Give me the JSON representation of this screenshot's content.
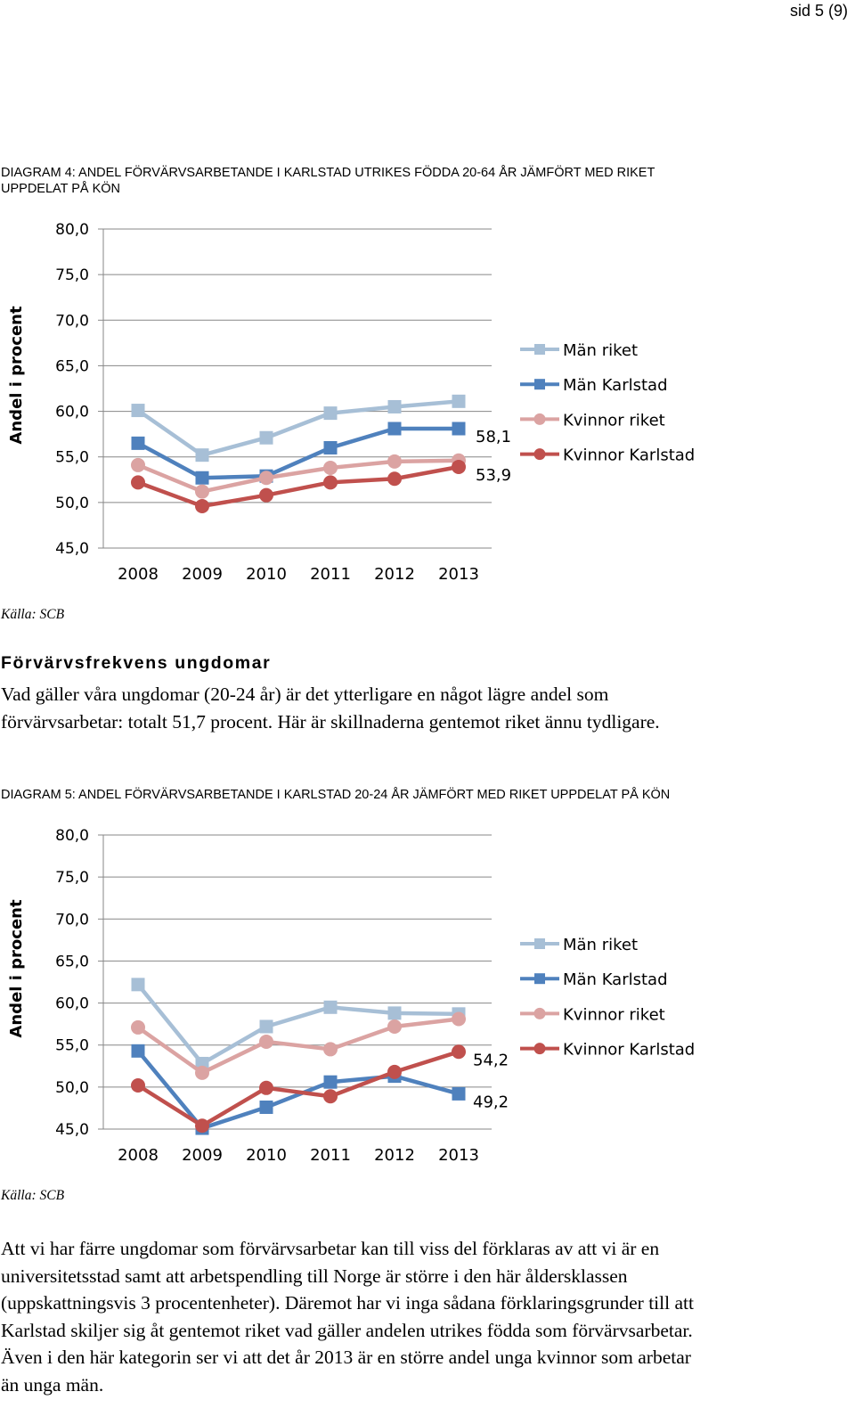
{
  "page": {
    "number": "sid 5 (9)"
  },
  "diagram4": {
    "heading": "DIAGRAM 4: ANDEL FÖRVÄRVSARBETANDE I KARLSTAD UTRIKES FÖDDA 20-64 ÅR JÄMFÖRT MED RIKET UPPDELAT PÅ KÖN",
    "source": "Källa: SCB"
  },
  "section": {
    "title": "Förvärvsfrekvens ungdomar",
    "paragraph1": "Vad gäller våra ungdomar (20-24 år) är det ytterligare en något lägre andel som förvärvsarbetar: totalt 51,7 procent. Här är skillnaderna gentemot riket ännu tydligare."
  },
  "diagram5": {
    "heading": "DIAGRAM 5: ANDEL FÖRVÄRVSARBETANDE I KARLSTAD 20-24 ÅR JÄMFÖRT MED RIKET UPPDELAT PÅ KÖN",
    "source": "Källa: SCB"
  },
  "closing": {
    "paragraph": "Att vi har färre ungdomar som förvärvsarbetar kan till viss del förklaras av att vi är en universitetsstad samt att arbetspendling till Norge är större i den här åldersklassen (uppskattningsvis 3 procentenheter). Däremot har vi inga sådana förklaringsgrunder till att Karlstad skiljer sig åt gentemot riket vad gäller andelen utrikes födda som förvärvsarbetar. Även i den här kategorin ser vi att det år 2013 är en större andel unga kvinnor som arbetar än unga män."
  },
  "chart_data": [
    {
      "type": "line",
      "ylabel": "Andel i procent",
      "xlabel": "",
      "categories": [
        "2008",
        "2009",
        "2010",
        "2011",
        "2012",
        "2013"
      ],
      "ylim": [
        45,
        80
      ],
      "y_ticks": [
        "45,0",
        "50,0",
        "55,0",
        "60,0",
        "65,0",
        "70,0",
        "75,0",
        "80,0"
      ],
      "grid": true,
      "legend_position": "right",
      "series": [
        {
          "name": "Män riket",
          "color": "#a7bfd6",
          "marker": "square",
          "values": [
            60.1,
            55.2,
            57.1,
            59.8,
            60.5,
            61.1
          ]
        },
        {
          "name": "Män Karlstad",
          "color": "#4f81bd",
          "marker": "square",
          "values": [
            56.5,
            52.7,
            52.9,
            56.0,
            58.1,
            58.1
          ]
        },
        {
          "name": "Kvinnor riket",
          "color": "#dba3a2",
          "marker": "circle",
          "values": [
            54.1,
            51.2,
            52.7,
            53.8,
            54.5,
            54.6
          ]
        },
        {
          "name": "Kvinnor Karlstad",
          "color": "#c0504d",
          "marker": "circle",
          "values": [
            52.2,
            49.6,
            50.8,
            52.2,
            52.6,
            53.9
          ]
        }
      ],
      "annotations": [
        {
          "text": "58,1",
          "series": "Män Karlstad"
        },
        {
          "text": "53,9",
          "series": "Kvinnor Karlstad"
        }
      ]
    },
    {
      "type": "line",
      "ylabel": "Andel i procent",
      "xlabel": "",
      "categories": [
        "2008",
        "2009",
        "2010",
        "2011",
        "2012",
        "2013"
      ],
      "ylim": [
        45,
        80
      ],
      "y_ticks": [
        "45,0",
        "50,0",
        "55,0",
        "60,0",
        "65,0",
        "70,0",
        "75,0",
        "80,0"
      ],
      "grid": true,
      "legend_position": "right",
      "series": [
        {
          "name": "Män riket",
          "color": "#a7bfd6",
          "marker": "square",
          "values": [
            62.2,
            52.8,
            57.2,
            59.5,
            58.8,
            58.7
          ]
        },
        {
          "name": "Män Karlstad",
          "color": "#4f81bd",
          "marker": "square",
          "values": [
            54.3,
            45.1,
            47.6,
            50.6,
            51.3,
            49.2
          ]
        },
        {
          "name": "Kvinnor riket",
          "color": "#dba3a2",
          "marker": "circle",
          "values": [
            57.1,
            51.7,
            55.4,
            54.5,
            57.2,
            58.1
          ]
        },
        {
          "name": "Kvinnor Karlstad",
          "color": "#c0504d",
          "marker": "circle",
          "values": [
            50.2,
            45.4,
            49.9,
            48.9,
            51.8,
            54.2
          ]
        }
      ],
      "annotations": [
        {
          "text": "54,2",
          "series": "Kvinnor Karlstad"
        },
        {
          "text": "49,2",
          "series": "Män Karlstad"
        }
      ]
    }
  ]
}
